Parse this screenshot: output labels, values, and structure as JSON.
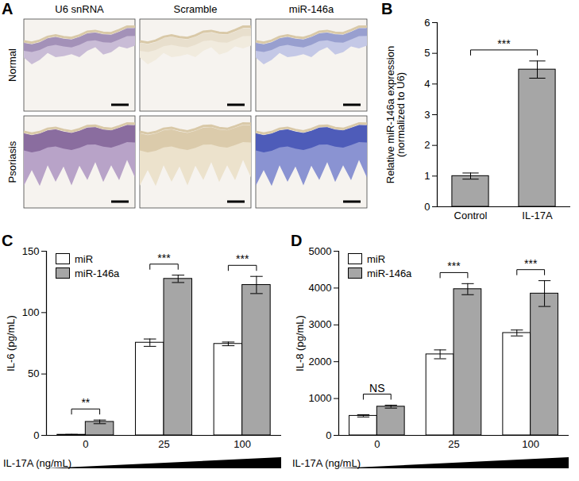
{
  "panel_a": {
    "panel_label": "A",
    "columns": [
      "U6 snRNA",
      "Scramble",
      "miR-146a"
    ],
    "rows": [
      "Normal",
      "Psoriasis"
    ]
  },
  "chart_data": [
    {
      "type": "bar",
      "panel_label": "B",
      "categories": [
        "Control",
        "IL-17A"
      ],
      "values": [
        1.0,
        4.47
      ],
      "errors": [
        0.1,
        0.28
      ],
      "color": "#a6a6a6",
      "ylabel": "Relative miR-146a expression\n(normalized to U6)",
      "ylim": [
        0,
        6
      ],
      "yticks": [
        0,
        1,
        2,
        3,
        4,
        5,
        6
      ],
      "significance": [
        {
          "between": [
            "Control",
            "IL-17A"
          ],
          "label": "***"
        }
      ]
    },
    {
      "type": "bar",
      "panel_label": "C",
      "categories": [
        "0",
        "25",
        "100"
      ],
      "xlabel": "IL-17A (ng/mL)",
      "ylabel": "IL-6 (pg/mL)",
      "series": [
        {
          "name": "miR",
          "color": "#ffffff",
          "values": [
            0.5,
            75.5,
            74.5
          ],
          "errors": [
            0.3,
            3,
            1.5
          ]
        },
        {
          "name": "miR-146a",
          "color": "#a6a6a6",
          "values": [
            11,
            127.5,
            122.5
          ],
          "errors": [
            1.5,
            3,
            7
          ]
        }
      ],
      "ylim": [
        0,
        150
      ],
      "yticks": [
        0,
        50,
        100,
        150
      ],
      "legend": "top-left",
      "significance": [
        "**",
        "***",
        "***"
      ]
    },
    {
      "type": "bar",
      "panel_label": "D",
      "categories": [
        "0",
        "25",
        "100"
      ],
      "xlabel": "IL-17A (ng/mL)",
      "ylabel": "IL-8 (pg/mL)",
      "series": [
        {
          "name": "miR",
          "color": "#ffffff",
          "values": [
            530,
            2200,
            2780
          ],
          "errors": [
            30,
            120,
            80
          ]
        },
        {
          "name": "miR-146a",
          "color": "#a6a6a6",
          "values": [
            780,
            3970,
            3850
          ],
          "errors": [
            40,
            150,
            350
          ]
        }
      ],
      "ylim": [
        0,
        5000
      ],
      "yticks": [
        0,
        1000,
        2000,
        3000,
        4000,
        5000
      ],
      "legend": "top-left",
      "significance": [
        "NS",
        "***",
        "***"
      ]
    }
  ]
}
